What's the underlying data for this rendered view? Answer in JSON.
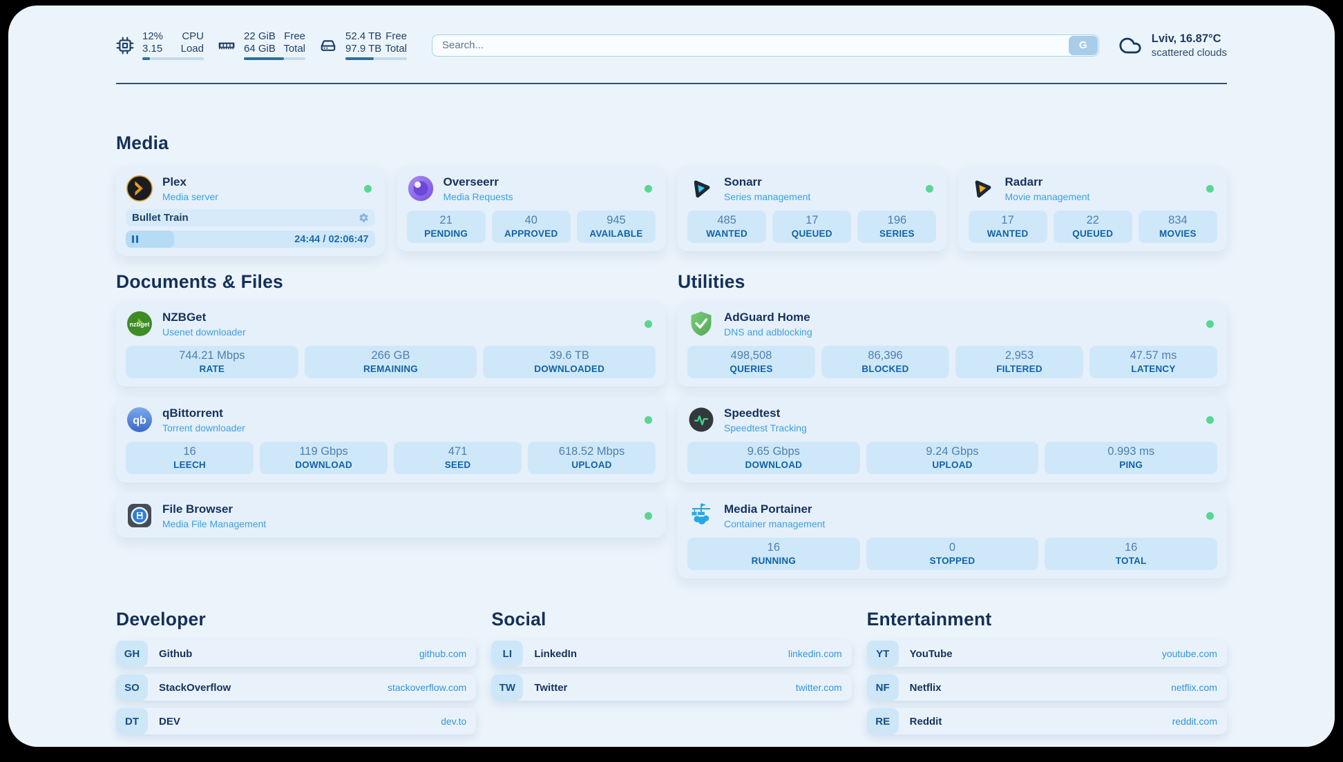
{
  "topbar": {
    "cpu": {
      "values": [
        "12%",
        "3.15"
      ],
      "labels": [
        "CPU",
        "Load"
      ],
      "percent": 12
    },
    "ram": {
      "values": [
        "22 GiB",
        "64 GiB"
      ],
      "labels": [
        "Free",
        "Total"
      ],
      "percent": 65
    },
    "disk": {
      "values": [
        "52.4 TB",
        "97.9 TB"
      ],
      "labels": [
        "Free",
        "Total"
      ],
      "percent": 46
    },
    "search": {
      "placeholder": "Search...",
      "button_label": "G"
    },
    "weather": {
      "location": "Lviv, 16.87°C",
      "condition": "scattered clouds"
    }
  },
  "media": {
    "title": "Media",
    "plex": {
      "name": "Plex",
      "subtitle": "Media server",
      "now_playing": "Bullet Train",
      "time": "24:44 / 02:06:47",
      "progress_percent": 19.5
    },
    "overseerr": {
      "name": "Overseerr",
      "subtitle": "Media Requests",
      "stats": [
        {
          "value": "21",
          "label": "PENDING"
        },
        {
          "value": "40",
          "label": "APPROVED"
        },
        {
          "value": "945",
          "label": "AVAILABLE"
        }
      ]
    },
    "sonarr": {
      "name": "Sonarr",
      "subtitle": "Series management",
      "stats": [
        {
          "value": "485",
          "label": "WANTED"
        },
        {
          "value": "17",
          "label": "QUEUED"
        },
        {
          "value": "196",
          "label": "SERIES"
        }
      ]
    },
    "radarr": {
      "name": "Radarr",
      "subtitle": "Movie management",
      "stats": [
        {
          "value": "17",
          "label": "WANTED"
        },
        {
          "value": "22",
          "label": "QUEUED"
        },
        {
          "value": "834",
          "label": "MOVIES"
        }
      ]
    }
  },
  "documents": {
    "title": "Documents & Files",
    "nzbget": {
      "name": "NZBGet",
      "subtitle": "Usenet downloader",
      "stats": [
        {
          "value": "744.21 Mbps",
          "label": "RATE"
        },
        {
          "value": "266 GB",
          "label": "REMAINING"
        },
        {
          "value": "39.6 TB",
          "label": "DOWNLOADED"
        }
      ]
    },
    "qbittorrent": {
      "name": "qBittorrent",
      "subtitle": "Torrent downloader",
      "stats": [
        {
          "value": "16",
          "label": "LEECH"
        },
        {
          "value": "119 Gbps",
          "label": "DOWNLOAD"
        },
        {
          "value": "471",
          "label": "SEED"
        },
        {
          "value": "618.52 Mbps",
          "label": "UPLOAD"
        }
      ]
    },
    "filebrowser": {
      "name": "File Browser",
      "subtitle": "Media File Management"
    }
  },
  "utilities": {
    "title": "Utilities",
    "adguard": {
      "name": "AdGuard Home",
      "subtitle": "DNS and adblocking",
      "stats": [
        {
          "value": "498,508",
          "label": "QUERIES"
        },
        {
          "value": "86,396",
          "label": "BLOCKED"
        },
        {
          "value": "2,953",
          "label": "FILTERED"
        },
        {
          "value": "47.57 ms",
          "label": "LATENCY"
        }
      ]
    },
    "speedtest": {
      "name": "Speedtest",
      "subtitle": "Speedtest Tracking",
      "stats": [
        {
          "value": "9.65 Gbps",
          "label": "DOWNLOAD"
        },
        {
          "value": "9.24 Gbps",
          "label": "UPLOAD"
        },
        {
          "value": "0.993 ms",
          "label": "PING"
        }
      ]
    },
    "portainer": {
      "name": "Media Portainer",
      "subtitle": "Container management",
      "stats": [
        {
          "value": "16",
          "label": "RUNNING"
        },
        {
          "value": "0",
          "label": "STOPPED"
        },
        {
          "value": "16",
          "label": "TOTAL"
        }
      ]
    }
  },
  "bookmarks": {
    "developer": {
      "title": "Developer",
      "items": [
        {
          "abbr": "GH",
          "name": "Github",
          "href": "github.com"
        },
        {
          "abbr": "SO",
          "name": "StackOverflow",
          "href": "stackoverflow.com"
        },
        {
          "abbr": "DT",
          "name": "DEV",
          "href": "dev.to"
        }
      ]
    },
    "social": {
      "title": "Social",
      "items": [
        {
          "abbr": "LI",
          "name": "LinkedIn",
          "href": "linkedin.com"
        },
        {
          "abbr": "TW",
          "name": "Twitter",
          "href": "twitter.com"
        }
      ]
    },
    "entertainment": {
      "title": "Entertainment",
      "items": [
        {
          "abbr": "YT",
          "name": "YouTube",
          "href": "youtube.com"
        },
        {
          "abbr": "NF",
          "name": "Netflix",
          "href": "netflix.com"
        },
        {
          "abbr": "RE",
          "name": "Reddit",
          "href": "reddit.com"
        }
      ]
    }
  },
  "colors": {
    "accent": "#2e96e0",
    "status_ok": "#58d692"
  }
}
